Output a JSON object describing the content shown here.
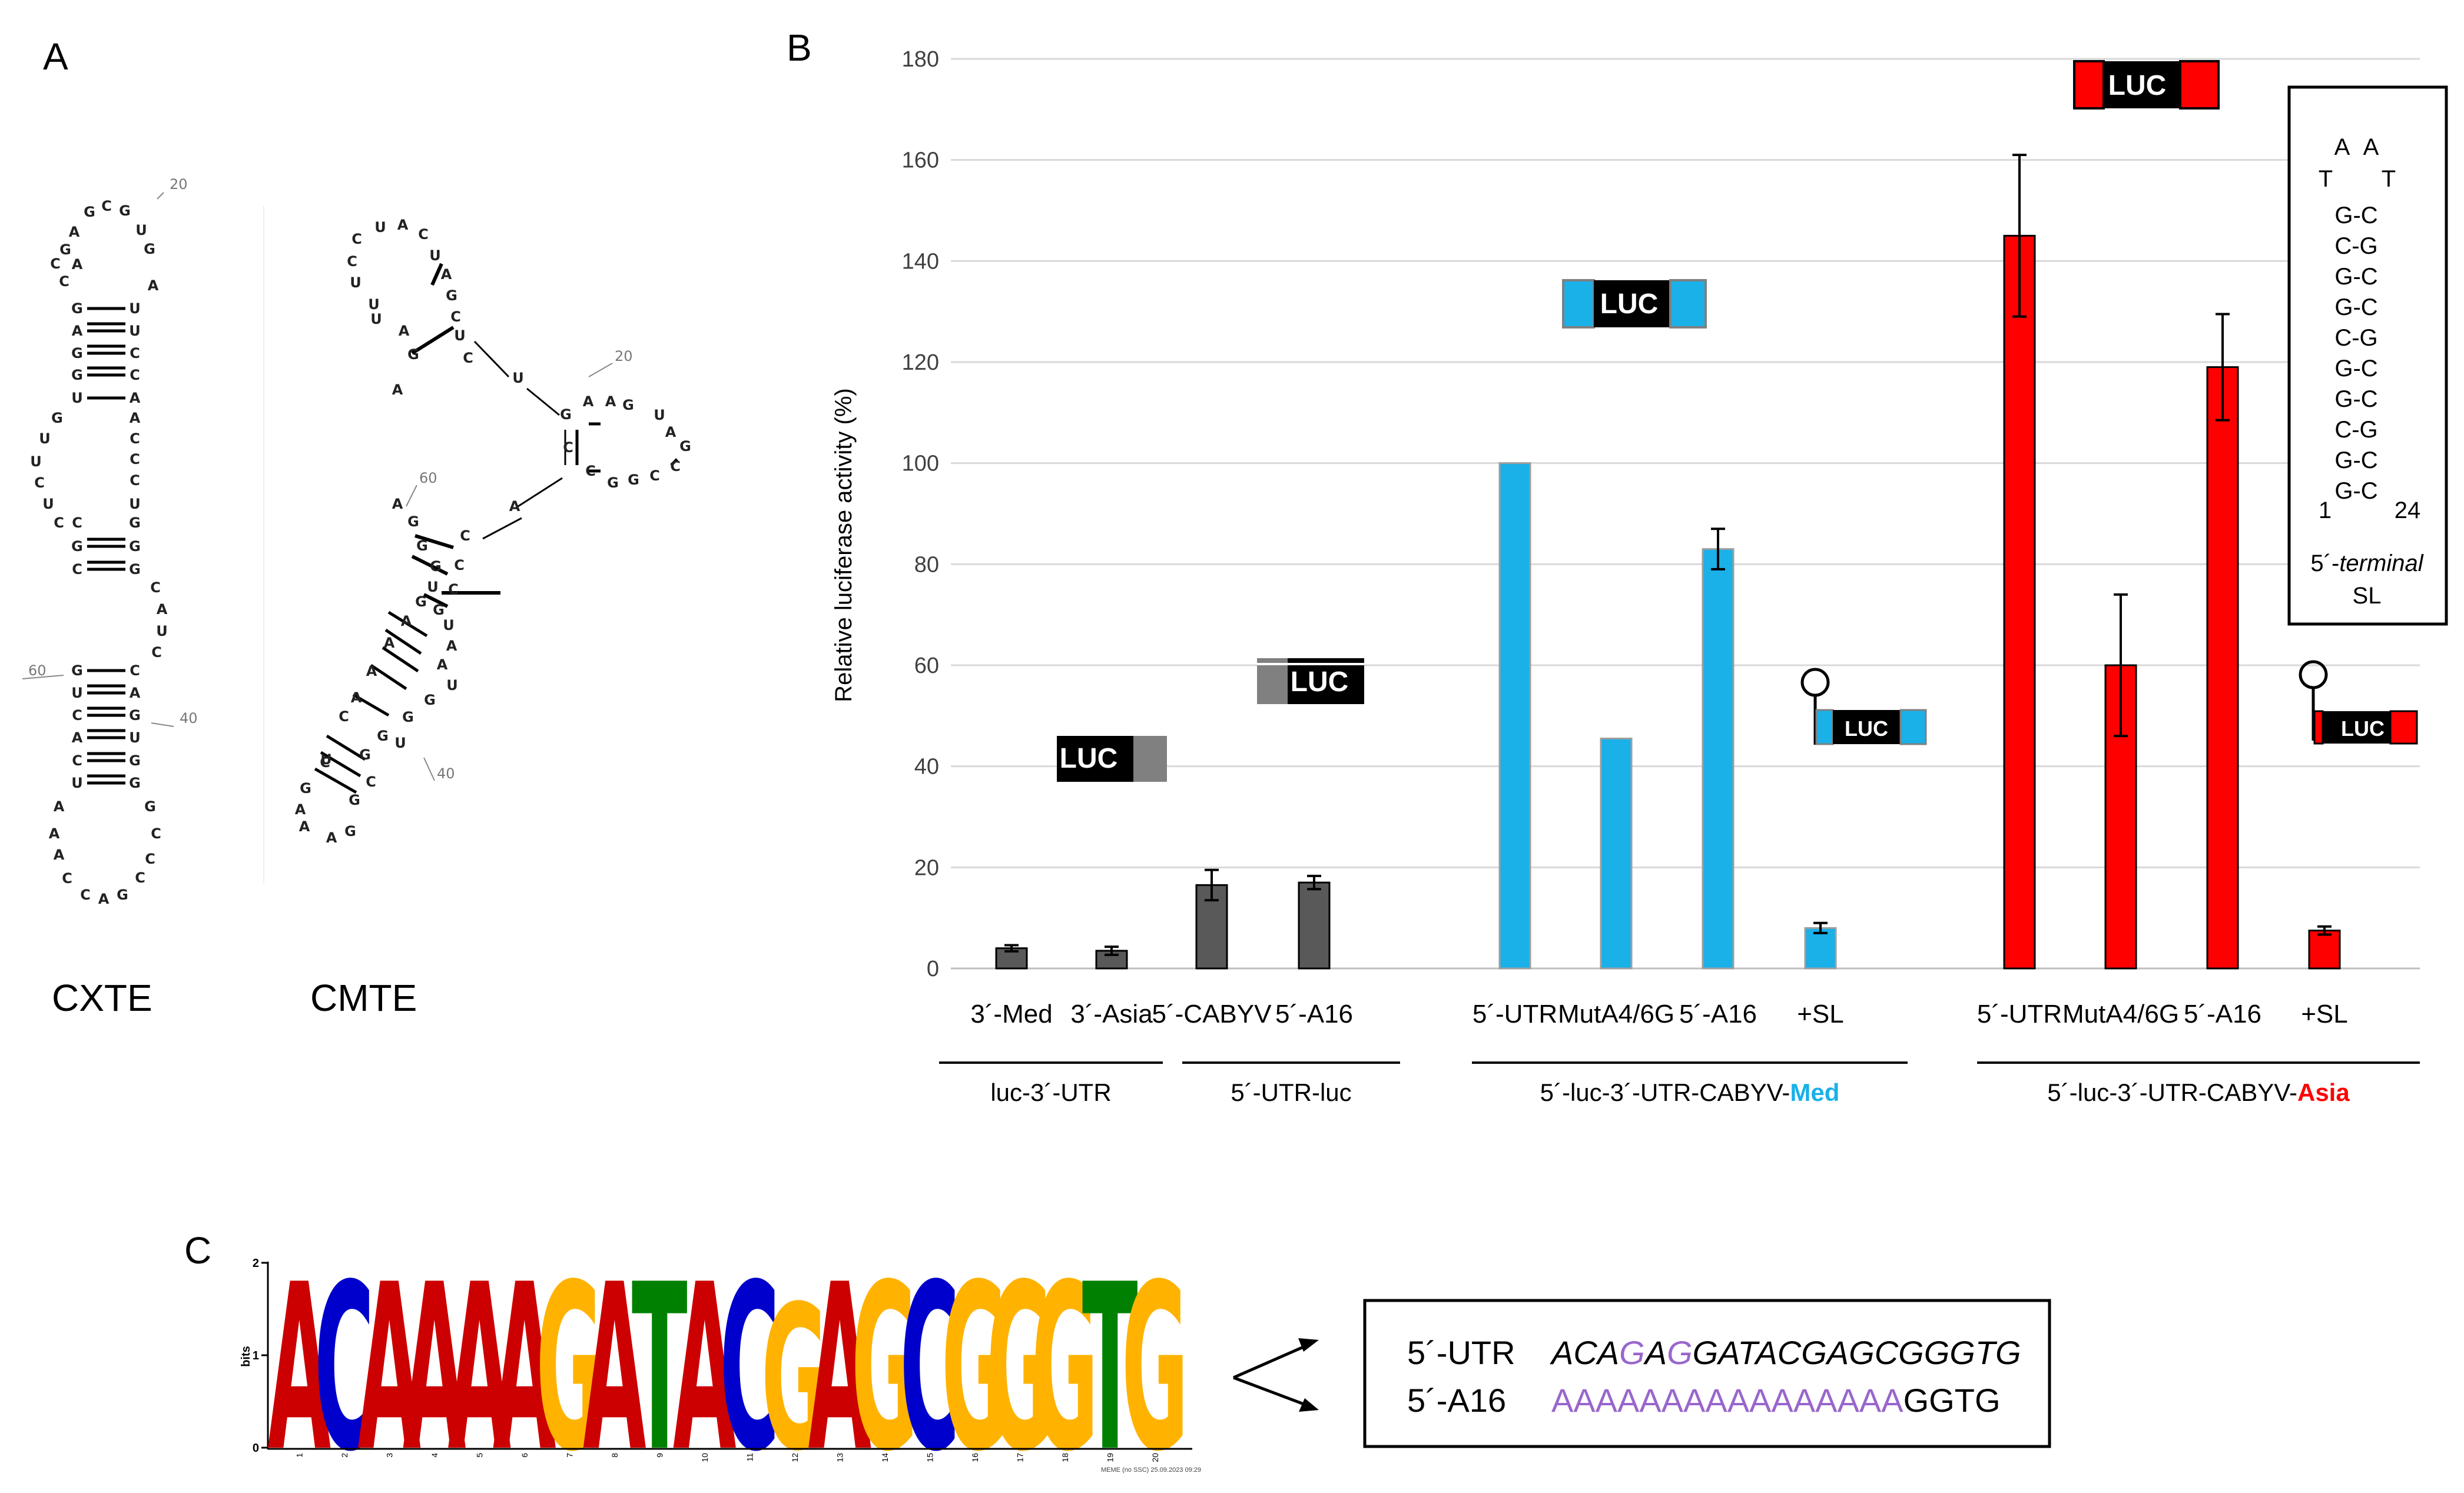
{
  "panel_labels": {
    "a": "A",
    "b": "B",
    "c": "C"
  },
  "panel_a": {
    "cxte": {
      "name": "CXTE",
      "positions": [
        "20",
        "40",
        "60"
      ],
      "bases": [
        [
          "G",
          111,
          432
        ],
        [
          "A",
          126,
          402
        ],
        [
          "G",
          152,
          368
        ],
        [
          "C",
          181,
          358
        ],
        [
          "G",
          212,
          366
        ],
        [
          "U",
          240,
          399
        ],
        [
          "G",
          254,
          431
        ],
        [
          "A",
          131,
          457
        ],
        [
          "A",
          260,
          493
        ],
        [
          "C",
          94,
          456
        ],
        [
          "C",
          109,
          486
        ],
        [
          "G",
          131,
          532
        ],
        [
          "U",
          229,
          532
        ],
        [
          "A",
          131,
          570
        ],
        [
          "U",
          229,
          570
        ],
        [
          "G",
          131,
          608
        ],
        [
          "C",
          229,
          608
        ],
        [
          "G",
          131,
          645
        ],
        [
          "C",
          229,
          645
        ],
        [
          "U",
          131,
          684
        ],
        [
          "A",
          229,
          684
        ],
        [
          "G",
          97,
          718
        ],
        [
          "U",
          76,
          753
        ],
        [
          "U",
          61,
          792
        ],
        [
          "C",
          67,
          828
        ],
        [
          "U",
          82,
          864
        ],
        [
          "C",
          100,
          896
        ],
        [
          "A",
          229,
          718
        ],
        [
          "C",
          229,
          753
        ],
        [
          "C",
          229,
          788
        ],
        [
          "C",
          229,
          824
        ],
        [
          "U",
          229,
          864
        ],
        [
          "C",
          131,
          896
        ],
        [
          "G",
          229,
          896
        ],
        [
          "G",
          131,
          936
        ],
        [
          "G",
          229,
          936
        ],
        [
          "C",
          131,
          975
        ],
        [
          "G",
          229,
          975
        ],
        [
          "C",
          264,
          1006
        ],
        [
          "A",
          275,
          1043
        ],
        [
          "U",
          275,
          1080
        ],
        [
          "C",
          266,
          1116
        ],
        [
          "G",
          131,
          1147
        ],
        [
          "C",
          229,
          1147
        ],
        [
          "U",
          131,
          1185
        ],
        [
          "A",
          229,
          1185
        ],
        [
          "C",
          131,
          1223
        ],
        [
          "G",
          229,
          1223
        ],
        [
          "A",
          131,
          1261
        ],
        [
          "U",
          229,
          1261
        ],
        [
          "C",
          131,
          1300
        ],
        [
          "G",
          229,
          1300
        ],
        [
          "U",
          131,
          1338
        ],
        [
          "G",
          229,
          1338
        ],
        [
          "A",
          100,
          1378
        ],
        [
          "G",
          255,
          1378
        ],
        [
          "A",
          92,
          1424
        ],
        [
          "C",
          265,
          1424
        ],
        [
          "A",
          100,
          1460
        ],
        [
          "C",
          255,
          1467
        ],
        [
          "C",
          114,
          1500
        ],
        [
          "C",
          238,
          1499
        ],
        [
          "C",
          145,
          1528
        ],
        [
          "A",
          176,
          1535
        ],
        [
          "G",
          208,
          1528
        ]
      ],
      "pairs": [
        [
          532,
          0
        ],
        [
          570,
          1
        ],
        [
          608,
          1
        ],
        [
          645,
          1
        ],
        [
          684,
          0
        ],
        [
          936,
          1
        ],
        [
          975,
          1
        ],
        [
          1147,
          0
        ],
        [
          1185,
          1
        ],
        [
          1223,
          1
        ],
        [
          1261,
          1
        ],
        [
          1300,
          1
        ],
        [
          1338,
          1
        ]
      ],
      "num_marks": [
        [
          "20",
          288,
          321,
          267,
          338
        ],
        [
          "40",
          305,
          1228,
          257,
          1228
        ],
        [
          "60",
          48,
          1147,
          108,
          1147
        ]
      ]
    },
    "cmte": {
      "name": "CMTE",
      "bases": [
        [
          "C",
          606,
          414
        ],
        [
          "U",
          646,
          394
        ],
        [
          "A",
          684,
          390
        ],
        [
          "C",
          719,
          406
        ],
        [
          "U",
          739,
          442
        ],
        [
          "A",
          758,
          474
        ],
        [
          "G",
          767,
          510
        ],
        [
          "C",
          598,
          452
        ],
        [
          "U",
          604,
          488
        ],
        [
          "U",
          635,
          525
        ],
        [
          "C",
          774,
          546
        ],
        [
          "U",
          781,
          578
        ],
        [
          "A",
          686,
          570
        ],
        [
          "G",
          702,
          610
        ],
        [
          "U",
          639,
          550
        ],
        [
          "A",
          675,
          670
        ],
        [
          "C",
          795,
          616
        ],
        [
          "U",
          880,
          650
        ],
        [
          "G",
          961,
          712
        ],
        [
          "A",
          999,
          690
        ],
        [
          "A",
          1037,
          690
        ],
        [
          "G",
          1067,
          696
        ],
        [
          "U",
          1120,
          713
        ],
        [
          "A",
          1139,
          742
        ],
        [
          "G",
          1164,
          766
        ],
        [
          "C",
          1147,
          800
        ],
        [
          "C",
          1112,
          816
        ],
        [
          "G",
          1076,
          823
        ],
        [
          "G",
          1041,
          828
        ],
        [
          "C",
          1003,
          808
        ],
        [
          "C",
          965,
          768
        ],
        [
          "A",
          874,
          868
        ],
        [
          "A",
          675,
          864
        ],
        [
          "G",
          702,
          894
        ],
        [
          "C",
          790,
          918
        ],
        [
          "G",
          717,
          935
        ],
        [
          "C",
          780,
          968
        ],
        [
          "G",
          740,
          970
        ],
        [
          "C",
          770,
          1009
        ],
        [
          "U",
          735,
          1005
        ],
        [
          "G",
          745,
          1044
        ],
        [
          "G",
          715,
          1030
        ],
        [
          "U",
          762,
          1070
        ],
        [
          "A",
          690,
          1063
        ],
        [
          "A",
          767,
          1105
        ],
        [
          "A",
          661,
          1100
        ],
        [
          "A",
          751,
          1137
        ],
        [
          "A",
          631,
          1148
        ],
        [
          "U",
          768,
          1172
        ],
        [
          "A",
          605,
          1193
        ],
        [
          "G",
          730,
          1197
        ],
        [
          "C",
          584,
          1225
        ],
        [
          "G",
          693,
          1226
        ],
        [
          "U",
          680,
          1270
        ],
        [
          "C",
          552,
          1303
        ],
        [
          "G",
          620,
          1290
        ],
        [
          "U",
          554,
          1298
        ],
        [
          "G",
          650,
          1258
        ],
        [
          "G",
          519,
          1347
        ],
        [
          "C",
          630,
          1336
        ],
        [
          "A",
          510,
          1383
        ],
        [
          "G",
          602,
          1367
        ],
        [
          "A",
          517,
          1412
        ],
        [
          "A",
          563,
          1431
        ],
        [
          "G",
          595,
          1420
        ]
      ],
      "pairs": [
        [
          750,
          448,
          734,
          484
        ],
        [
          770,
          556,
          700,
          600
        ],
        [
          750,
          1007,
          850,
          1007
        ],
        [
          705,
          910,
          770,
          930
        ],
        [
          700,
          945,
          760,
          975
        ],
        [
          720,
          1010,
          760,
          1030
        ]
      ],
      "num_marks": [
        [
          "20",
          1044,
          613,
          1000,
          640
        ],
        [
          "40",
          742,
          1322,
          720,
          1287
        ],
        [
          "60",
          712,
          820,
          690,
          860
        ]
      ]
    }
  },
  "chart_data": {
    "type": "bar",
    "ylabel": "Relative luciferase activity (%)",
    "xlabel": "",
    "ylim": [
      0,
      180
    ],
    "yticks": [
      "0",
      "20",
      "40",
      "60",
      "80",
      "100",
      "120",
      "140",
      "160",
      "180"
    ],
    "grid": true,
    "legend": "none",
    "categories": [
      "3´-Med",
      "3´-Asia",
      "5´-CABYV",
      "5´-A16",
      "5´-UTR",
      "MutA4/6G",
      "5´-A16",
      "+SL",
      "5´-UTR",
      "MutA4/6G",
      "5´-A16",
      "+SL"
    ],
    "values": [
      4,
      3.5,
      16.5,
      17,
      100,
      45.5,
      83,
      8,
      145,
      60,
      119,
      7.5
    ],
    "errors": [
      0.6,
      0.8,
      3,
      1.3,
      0,
      0,
      4,
      1,
      16,
      14,
      10.5,
      0.8
    ],
    "bar_colors": [
      "#595959",
      "#595959",
      "#595959",
      "#595959",
      "#1ab0e8",
      "#1ab0e8",
      "#1ab0e8",
      "#1ab0e8",
      "#ff0000",
      "#ff0000",
      "#ff0000",
      "#ff0000"
    ],
    "groups": [
      {
        "label": "luc-3´-UTR",
        "highlight": "",
        "members": [
          0,
          1
        ]
      },
      {
        "label": "5´-UTR-luc",
        "highlight": "",
        "members": [
          2,
          3
        ]
      },
      {
        "label": "5´-luc-3´-UTR-CABYV-",
        "highlight": "Med",
        "highlight_color": "#1ab0e8",
        "members": [
          4,
          5,
          6,
          7
        ]
      },
      {
        "label": "5´-luc-3´-UTR-CABYV-",
        "highlight": "Asia",
        "highlight_color": "#ff0000",
        "members": [
          8,
          9,
          10,
          11
        ]
      }
    ]
  },
  "constructs": {
    "luc_label": "LUC",
    "luc_label_small": "LUC"
  },
  "inset": {
    "loop_top": [
      "A",
      "A"
    ],
    "loop_side": [
      "T",
      "T"
    ],
    "pairs": [
      "G-C",
      "C-G",
      "G-C",
      "G-C",
      "C-G",
      "G-C",
      "G-C",
      "C-G",
      "G-C",
      "G-C"
    ],
    "end_left": "1",
    "end_right": "24",
    "caption_prefix": "5´-",
    "caption_italic": "terminal",
    "caption_line2": "SL"
  },
  "panel_c": {
    "logo_letters": [
      "A",
      "C",
      "A",
      "A",
      "A",
      "A",
      "G",
      "A",
      "T",
      "A",
      "C",
      "G",
      "A",
      "G",
      "C",
      "G",
      "G",
      "G",
      "T",
      "G"
    ],
    "logo_heights": [
      1.9,
      1.9,
      1.9,
      1.9,
      1.9,
      1.9,
      1.9,
      1.9,
      1.9,
      1.9,
      1.9,
      1.65,
      1.9,
      1.9,
      1.9,
      1.9,
      1.9,
      1.9,
      1.9,
      1.9
    ],
    "positions": [
      "1",
      "2",
      "3",
      "4",
      "5",
      "6",
      "7",
      "8",
      "9",
      "10",
      "11",
      "12",
      "13",
      "14",
      "15",
      "16",
      "17",
      "18",
      "19",
      "20"
    ],
    "y_axis_label": "bits",
    "y_ticks": [
      "0",
      "1",
      "2"
    ],
    "footer": "MEME (no SSC) 25.09.2023 09:29",
    "letter_colors": {
      "A": "#cc0000",
      "C": "#0000cc",
      "G": "#ffb300",
      "T": "#008000"
    },
    "seq1_label": "5´-UTR",
    "seq1_segments": [
      {
        "text": "ACA",
        "color": "#000000",
        "italic": true
      },
      {
        "text": "G",
        "color": "#9966cc",
        "italic": true
      },
      {
        "text": "A",
        "color": "#000000",
        "italic": true
      },
      {
        "text": "G",
        "color": "#9966cc",
        "italic": true
      },
      {
        "text": "GATACGAGCGGGTG",
        "color": "#000000",
        "italic": true
      }
    ],
    "seq2_label": "5´-A16",
    "seq2_segments": [
      {
        "text": "AAAAAAAAAAAAAAAA",
        "color": "#9966cc",
        "italic": false
      },
      {
        "text": "GGTG",
        "color": "#000000",
        "italic": false
      }
    ]
  }
}
